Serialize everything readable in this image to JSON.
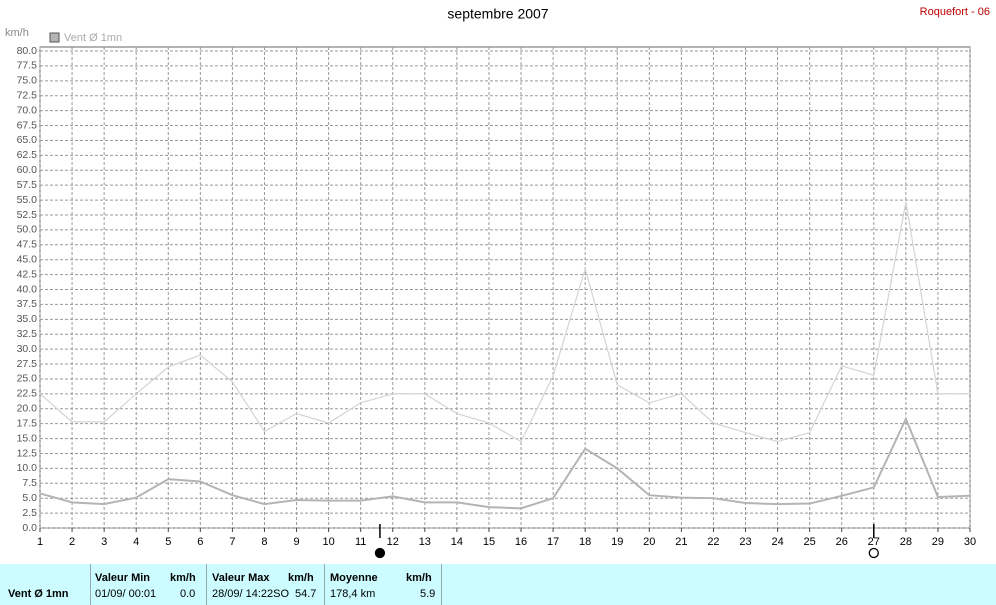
{
  "chart_data": {
    "type": "line",
    "title": "septembre 2007",
    "annotation": "Roquefort - 06",
    "ylabel": "km/h",
    "x": [
      1,
      2,
      3,
      4,
      5,
      6,
      7,
      8,
      9,
      10,
      11,
      12,
      13,
      14,
      15,
      16,
      17,
      18,
      19,
      20,
      21,
      22,
      23,
      24,
      25,
      26,
      27,
      28,
      29,
      30
    ],
    "xlim": [
      1,
      30
    ],
    "xticks": [
      1,
      2,
      3,
      4,
      5,
      6,
      7,
      8,
      9,
      10,
      11,
      12,
      13,
      14,
      15,
      16,
      17,
      18,
      19,
      20,
      21,
      22,
      23,
      24,
      25,
      26,
      27,
      28,
      29,
      30
    ],
    "ylim": [
      0,
      80
    ],
    "yticks": [
      {
        "value": 0,
        "label": "0.0"
      },
      {
        "value": 2.5,
        "label": "2.5"
      },
      {
        "value": 5,
        "label": "5.0"
      },
      {
        "value": 7.5,
        "label": "7.5"
      },
      {
        "value": 10,
        "label": "10.0"
      },
      {
        "value": 12.5,
        "label": "12.5"
      },
      {
        "value": 15,
        "label": "15.0"
      },
      {
        "value": 17.5,
        "label": "17.5"
      },
      {
        "value": 20,
        "label": "20.0"
      },
      {
        "value": 22.5,
        "label": "22.5"
      },
      {
        "value": 25,
        "label": "25.0"
      },
      {
        "value": 27.5,
        "label": "27.5"
      },
      {
        "value": 30,
        "label": "30.0"
      },
      {
        "value": 32.5,
        "label": "32.5"
      },
      {
        "value": 35,
        "label": "35.0"
      },
      {
        "value": 37.5,
        "label": "37.5"
      },
      {
        "value": 40,
        "label": "40.0"
      },
      {
        "value": 42.5,
        "label": "42.5"
      },
      {
        "value": 45,
        "label": "45.0"
      },
      {
        "value": 47.5,
        "label": "47.5"
      },
      {
        "value": 50,
        "label": "50.0"
      },
      {
        "value": 52.5,
        "label": "52.5"
      },
      {
        "value": 55,
        "label": "55.0"
      },
      {
        "value": 57.5,
        "label": "57.5"
      },
      {
        "value": 60,
        "label": "60.0"
      },
      {
        "value": 62.5,
        "label": "62.5"
      },
      {
        "value": 65,
        "label": "65.0"
      },
      {
        "value": 67.5,
        "label": "67.5"
      },
      {
        "value": 70,
        "label": "70.0"
      },
      {
        "value": 72.5,
        "label": "72.5"
      },
      {
        "value": 75,
        "label": "75.0"
      },
      {
        "value": 77.5,
        "label": "77.5"
      },
      {
        "value": 80,
        "label": "80.0"
      }
    ],
    "grid": true,
    "series": [
      {
        "name": "Vent Ø 1mn",
        "color": "#b4b4b4",
        "values": [
          5.8,
          4.3,
          4.0,
          5.1,
          8.2,
          7.8,
          5.5,
          4.0,
          4.7,
          4.6,
          4.6,
          5.3,
          4.3,
          4.3,
          3.5,
          3.3,
          5.0,
          13.3,
          10.0,
          5.5,
          5.1,
          5.0,
          4.2,
          4.0,
          4.1,
          5.4,
          6.8,
          18.3,
          5.2,
          5.4
        ]
      },
      {
        "color": "#d4d4d4",
        "values": [
          22.5,
          17.8,
          17.8,
          22.5,
          27.0,
          29.0,
          24.5,
          16.2,
          19.2,
          17.6,
          21.0,
          22.5,
          22.5,
          19.2,
          17.6,
          14.5,
          25.5,
          43.5,
          24.0,
          21.0,
          22.5,
          17.6,
          16.0,
          14.5,
          16.0,
          27.2,
          25.6,
          54.7,
          22.5,
          22.5
        ]
      }
    ],
    "moon_x": [
      11.6,
      27
    ]
  },
  "summary": {
    "label": "Vent Ø 1mn",
    "min": {
      "header": "Valeur Min",
      "unit": "km/h",
      "date": "01/09/  00:01",
      "value": "0.0"
    },
    "max": {
      "header": "Valeur Max",
      "unit": "km/h",
      "date": "28/09/  14:22SO",
      "value": "54.7"
    },
    "mean": {
      "header": "Moyenne",
      "unit": "km/h",
      "date": "178,4 km",
      "value": "5.9"
    }
  }
}
